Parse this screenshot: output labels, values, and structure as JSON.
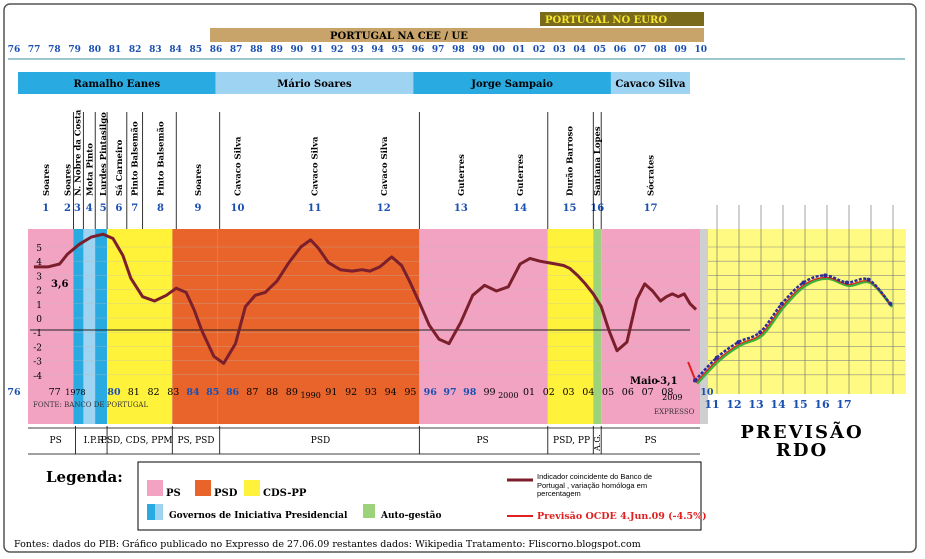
{
  "banners": {
    "cee": "PORTUGAL NA CEE / UE",
    "euro": "PORTUGAL NO EURO"
  },
  "top_years": [
    "76",
    "77",
    "78",
    "79",
    "80",
    "81",
    "82",
    "83",
    "84",
    "85",
    "86",
    "87",
    "88",
    "89",
    "90",
    "91",
    "92",
    "93",
    "94",
    "95",
    "96",
    "97",
    "98",
    "99",
    "00",
    "01",
    "02",
    "03",
    "04",
    "05",
    "06",
    "07",
    "08",
    "09",
    "10"
  ],
  "presidents": [
    {
      "name": "Ramalho Eanes",
      "from": 76,
      "to": 86,
      "color": "#29abe2"
    },
    {
      "name": "Mário Soares",
      "from": 86,
      "to": 96,
      "color": "#9fd3f2"
    },
    {
      "name": "Jorge Sampaio",
      "from": 96,
      "to": 106,
      "color": "#29abe2"
    },
    {
      "name": "Cavaco Silva",
      "from": 106,
      "to": 110,
      "color": "#9fd3f2"
    }
  ],
  "governments": [
    {
      "n": "1",
      "pm": "Soares",
      "pos": 1976.9
    },
    {
      "n": "2",
      "pm": "Soares",
      "pos": 1978.0
    },
    {
      "n": "3",
      "pm": "N. Nobre da Costa",
      "pos": 1978.5
    },
    {
      "n": "4",
      "pm": "Mota Pinto",
      "pos": 1979.1
    },
    {
      "n": "5",
      "pm": "Lurdes Pintasilgo",
      "pos": 1979.8
    },
    {
      "n": "6",
      "pm": "Sá Carneiro",
      "pos": 1980.6
    },
    {
      "n": "7",
      "pm": "Pinto Balsemão",
      "pos": 1981.4
    },
    {
      "n": "8",
      "pm": "Pinto Balsemão",
      "pos": 1982.7
    },
    {
      "n": "9",
      "pm": "Soares",
      "pos": 1984.6
    },
    {
      "n": "10",
      "pm": "Cavaco Silva",
      "pos": 1986.6
    },
    {
      "n": "11",
      "pm": "Cavaco Silva",
      "pos": 1990.5
    },
    {
      "n": "12",
      "pm": "Cavaco Silva",
      "pos": 1994.0
    },
    {
      "n": "13",
      "pm": "Guterres",
      "pos": 1997.9
    },
    {
      "n": "14",
      "pm": "Guterres",
      "pos": 2000.9
    },
    {
      "n": "15",
      "pm": "Durão Barroso",
      "pos": 2003.4
    },
    {
      "n": "16",
      "pm": "Santana Lopes",
      "pos": 2004.8
    },
    {
      "n": "17",
      "pm": "Sócrates",
      "pos": 2007.5
    }
  ],
  "party_bands": [
    {
      "from": 1976.0,
      "to": 1978.3,
      "party": "PS"
    },
    {
      "from": 1978.3,
      "to": 1980.0,
      "party": "GIP"
    },
    {
      "from": 1980.0,
      "to": 1983.3,
      "party": "CDS"
    },
    {
      "from": 1983.3,
      "to": 1985.6,
      "party": "PSD"
    },
    {
      "from": 1985.6,
      "to": 1995.8,
      "party": "PSD"
    },
    {
      "from": 1995.8,
      "to": 2002.3,
      "party": "PS"
    },
    {
      "from": 2002.3,
      "to": 2004.6,
      "party": "CDS"
    },
    {
      "from": 2004.6,
      "to": 2005.0,
      "party": "AG"
    },
    {
      "from": 2005.0,
      "to": 2010.0,
      "party": "PS"
    }
  ],
  "bottom_parties": [
    {
      "label": "PS",
      "center": 1977.4
    },
    {
      "label": "I.P.R.",
      "center": 1979.4
    },
    {
      "label": "PSD, CDS, PPM",
      "center": 1981.5
    },
    {
      "label": "PS, PSD",
      "center": 1984.5
    },
    {
      "label": "PSD",
      "center": 1990.8
    },
    {
      "label": "PS",
      "center": 1999.0
    },
    {
      "label": "PSD, PP",
      "center": 2003.5
    },
    {
      "label": "A.G.",
      "center": 2004.8
    },
    {
      "label": "PS",
      "center": 2007.5
    }
  ],
  "inner_source": "FONTE: BANCO DE PORTUGAL",
  "inner_brand": "EXPRESSO",
  "forecast_title": "PREVISÃO",
  "forecast_sub": "RDO",
  "forecast_years": [
    "11",
    "12",
    "13",
    "14",
    "15",
    "16",
    "17"
  ],
  "annotations": {
    "start": "3,6",
    "may": "Maio",
    "may_val": "-3,1",
    "yr2009": "2009",
    "yr1990": "1990",
    "yr2000": "2000",
    "yr1978": "1978",
    "yr10": "10"
  },
  "legend": {
    "title": "Legenda:",
    "ps": "PS",
    "psd": "PSD",
    "cds": "CDS-PP",
    "gip": "Governos de Iniciativa Presidencial",
    "ag": "Auto-gestão",
    "bdp": "Indicador coincidente do Banco de Portugal , variação homóloga em percentagem",
    "ocde": "Previsão OCDE 4.Jun.09 (-4.5%)"
  },
  "footer": "Fontes: dados do PIB: Gráfico publicado no Expresso de 27.06.09     restantes dados: Wikipedia     Tratamento: Fliscorno.blogspot.com",
  "colors": {
    "ps": "#f2a3c2",
    "psd": "#e8642b",
    "cds": "#fff23a",
    "gip": "#29abe2",
    "ag": "#9bd27a",
    "line": "#7a1f2b",
    "blue": "#2b2b9e",
    "green": "#3bb33b",
    "red": "#e02020"
  },
  "chart_data": {
    "type": "line",
    "ylim": [
      -4.5,
      6
    ],
    "yticks": [
      5,
      4,
      3,
      2,
      1,
      0,
      -1,
      -2,
      -3,
      -4
    ],
    "series": [
      {
        "name": "Indicador coincidente do Banco de Portugal",
        "x": [
          1976.3,
          1977.0,
          1977.6,
          1978.0,
          1978.6,
          1979.2,
          1979.8,
          1980.3,
          1980.8,
          1981.2,
          1981.8,
          1982.4,
          1983.0,
          1983.5,
          1984.0,
          1984.4,
          1984.8,
          1985.4,
          1985.9,
          1986.5,
          1987.0,
          1987.5,
          1988.0,
          1988.6,
          1989.2,
          1989.8,
          1990.3,
          1990.7,
          1991.2,
          1991.8,
          1992.4,
          1992.9,
          1993.3,
          1993.8,
          1994.4,
          1994.9,
          1995.3,
          1995.8,
          1996.3,
          1996.8,
          1997.3,
          1997.9,
          1998.5,
          1999.1,
          1999.7,
          2000.3,
          2000.9,
          2001.4,
          2001.9,
          2002.3,
          2002.7,
          2003.1,
          2003.4,
          2003.8,
          2004.2,
          2004.6,
          2005.0,
          2005.4,
          2005.8,
          2006.3,
          2006.8,
          2007.2,
          2007.6,
          2008.0,
          2008.3,
          2008.6,
          2008.9,
          2009.2,
          2009.5,
          2009.8
        ],
        "y": [
          3.6,
          3.6,
          3.8,
          4.5,
          5.2,
          5.7,
          5.9,
          5.6,
          4.4,
          2.8,
          1.5,
          1.2,
          1.6,
          2.1,
          1.8,
          0.6,
          -0.9,
          -2.7,
          -3.2,
          -1.8,
          0.8,
          1.6,
          1.8,
          2.6,
          3.9,
          5.0,
          5.5,
          4.9,
          3.9,
          3.4,
          3.3,
          3.4,
          3.3,
          3.6,
          4.3,
          3.7,
          2.6,
          1.1,
          -0.5,
          -1.5,
          -1.8,
          -0.3,
          1.6,
          2.3,
          1.9,
          2.2,
          3.8,
          4.2,
          4.0,
          3.9,
          3.8,
          3.7,
          3.5,
          3.0,
          2.4,
          1.7,
          0.8,
          -0.9,
          -2.3,
          -1.7,
          1.3,
          2.4,
          1.9,
          1.2,
          1.5,
          1.7,
          1.5,
          1.7,
          1.0,
          0.6
        ]
      },
      {
        "name": "Previsão RDO",
        "x": [
          2010,
          2011,
          2012,
          2013,
          2014,
          2015,
          2016,
          2017,
          2018,
          2019
        ],
        "y": [
          -4.4,
          -2.8,
          -1.7,
          -1.0,
          1.0,
          2.5,
          3.0,
          2.5,
          2.7,
          1.0
        ]
      },
      {
        "name": "Previsão OCDE 4.Jun.09 (-4.5%)",
        "x": [
          2009.4,
          2009.6,
          2009.8
        ],
        "y": [
          -3.1,
          -3.8,
          -4.5
        ]
      }
    ]
  }
}
